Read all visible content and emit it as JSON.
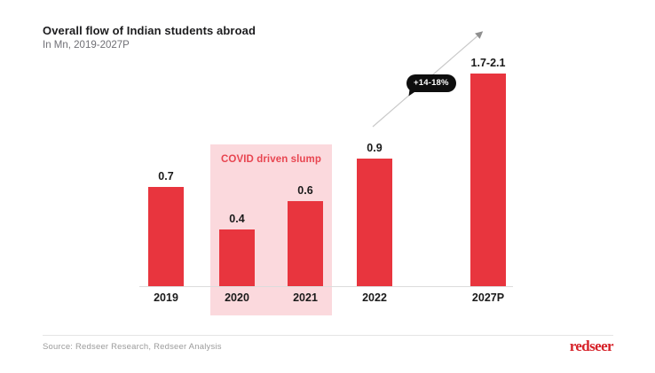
{
  "header": {
    "title": "Overall flow of Indian students abroad",
    "subtitle": "In Mn, 2019-2027P"
  },
  "chart_data": {
    "type": "bar",
    "title": "Overall flow of Indian students abroad",
    "units": "Mn",
    "categories": [
      "2019",
      "2020",
      "2021",
      "2022",
      "2027P"
    ],
    "values": [
      0.7,
      0.4,
      0.6,
      0.9,
      [
        1.7,
        2.1
      ]
    ],
    "value_labels": [
      "0.7",
      "0.4",
      "0.6",
      "0.9",
      "1.7-2.1"
    ],
    "grid": false,
    "legend": false,
    "bar_color": "#e8353e",
    "annotations": {
      "covid_region": {
        "label": "COVID driven slump",
        "covers_categories": [
          "2020",
          "2021"
        ],
        "fill": "#fbd9dd",
        "text_color": "#e84550"
      },
      "growth_badge": {
        "label": "+14-18%",
        "bg": "#0e0e0e",
        "text_color": "#ffffff"
      },
      "trend_arrow": {
        "from_category": "2022",
        "to_category": "2027P",
        "color": "#c9c9c9"
      }
    }
  },
  "footer": {
    "source": "Source: Redseer Research, Redseer Analysis",
    "logo_text": "redseer",
    "logo_color": "#d62128"
  }
}
